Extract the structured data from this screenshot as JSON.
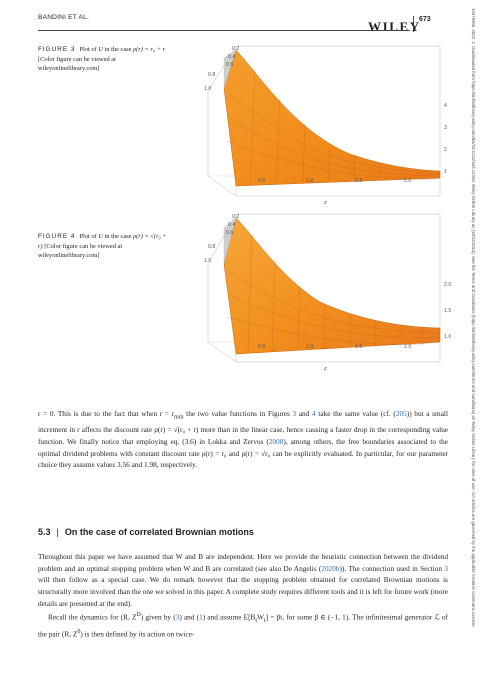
{
  "header": {
    "running_head": "BANDINI ET AL.",
    "page_number": "673",
    "brand": "WILEY"
  },
  "side_strip": "14679965, 2022, 2, Downloaded from https://onlinelibrary.wiley.com/doi/10.1111/mafi.12339, Wiley Online Library on [18/12/2024]. See the Terms and Conditions (https://onlinelibrary.wiley.com/terms-and-conditions) on Wiley Online Library for rules of use; OA articles are governed by the applicable Creative Commons License",
  "figure3": {
    "label": "FIGURE 3",
    "caption_pre": "Plot of ",
    "caption_var": "U",
    "caption_mid": " in the case ",
    "caption_formula": "ρ(r) = r₀ + r",
    "caption_post": " [Color figure can be viewed at wileyonlinelibrary.com]",
    "x_ticks": [
      "0.5",
      "1.0",
      "1.5",
      "2.0"
    ],
    "x_label": "z",
    "r_ticks": [
      "1.0",
      "0.8",
      "0.6",
      "0.4",
      "0.2"
    ],
    "u_ticks": [
      "1",
      "2",
      "3",
      "4"
    ]
  },
  "figure4": {
    "label": "FIGURE 4",
    "caption_pre": "Plot of ",
    "caption_var": "U",
    "caption_mid": " in the case ",
    "caption_formula": "ρ(r) = √(r₀ + r)",
    "caption_post": " [Color figure can be viewed at wileyonlinelibrary.com]",
    "x_ticks": [
      "0.5",
      "1.0",
      "1.5",
      "2.0"
    ],
    "x_label": "z",
    "r_ticks": [
      "1.0",
      "0.8",
      "0.6",
      "0.4",
      "0.2"
    ],
    "u_ticks": [
      "1.0",
      "1.5",
      "2.0"
    ]
  },
  "paragraph1": {
    "t1": "r = 0. This is due to the fact that when r = r",
    "t1_sub": "min",
    "t2": " the two value functions in Figures ",
    "ref_fig3": "3",
    "t3": " and ",
    "ref_fig4": "4",
    "t4": " take the same value (cf. (",
    "ref_eq": "205",
    "t5": ")) but a small increment in r affects the discount rate ρ(r) = √(r₀ + r) more than in the linear case, hence causing a faster drop in the corresponding value function. We finally notice that employing eq. (3.6) in Lokka and Zervos (",
    "ref_lokka": "2008",
    "t6": "), among others, the free boundaries associated to the optimal dividend problems with constant discount rate ρ(r) = r₀ and ρ(r) = √r₀ can be explicitly evaluated. In particular, for our parameter choice they assume values 3.56 and 1.98, respectively."
  },
  "section": {
    "number": "5.3",
    "separator": "|",
    "title": "On the case of correlated Brownian motions"
  },
  "paragraph2": {
    "t1": "Throughout this paper we have assumed that W and B are independent. Here we provide the heuristic connection between the dividend problem and an optimal stopping problem when W and B are correlated (see also De Angelis (",
    "ref_deangelis": "2020b",
    "t2": ")). The connection used in Section ",
    "ref_section": "3",
    "t3": " will then follow as a special case. We do remark however that the stopping problem obtained for correlated Brownian motions is structurally more involved than the one we solved in this paper. A complete study requires different tools and it is left for future work (more details are presented at the end)."
  },
  "paragraph3": {
    "t1": "Recall the dynamics for (R, Z",
    "t1_sup": "D",
    "t2": ") given by (",
    "ref_3": "3",
    "t3": ") and (",
    "ref_1": "1",
    "t4": ") and assume E[B",
    "t4_sub": "t",
    "t5": "W",
    "t5_sub": "t",
    "t6": "] = βt, for some β ∈ (−1, 1). The infinitesimal generator ℒ of the pair (R, Z",
    "t6_sup": "0",
    "t7": ") is then defined by its action on twice-"
  }
}
